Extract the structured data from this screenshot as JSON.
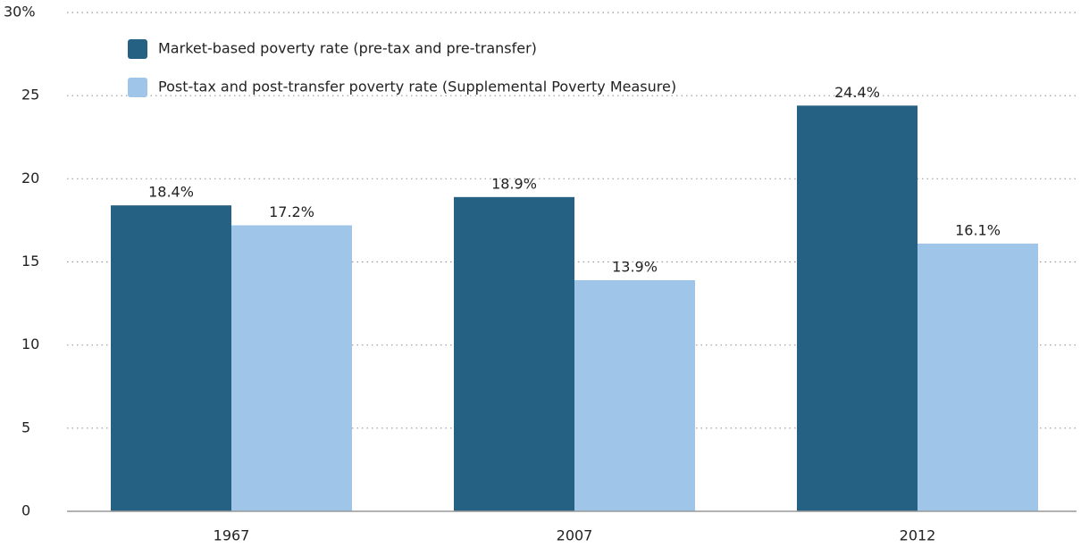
{
  "chart_data": {
    "type": "bar",
    "categories": [
      "1967",
      "2007",
      "2012"
    ],
    "series": [
      {
        "name": "Market-based poverty rate (pre-tax and pre-transfer)",
        "color": "#256182",
        "values": [
          18.4,
          18.9,
          24.4
        ],
        "value_labels": [
          "18.4%",
          "18.9%",
          "24.4%"
        ]
      },
      {
        "name": "Post-tax and post-transfer poverty rate (Supplemental Poverty Measure)",
        "color": "#9fc5e8",
        "values": [
          17.2,
          13.9,
          16.1
        ],
        "value_labels": [
          "17.2%",
          "13.9%",
          "16.1%"
        ]
      }
    ],
    "ylim": [
      0,
      30
    ],
    "yticks": [
      0,
      5,
      10,
      15,
      20,
      25,
      {
        "value": 30,
        "label": "30%"
      }
    ],
    "grid": true,
    "legend": "top-left"
  }
}
